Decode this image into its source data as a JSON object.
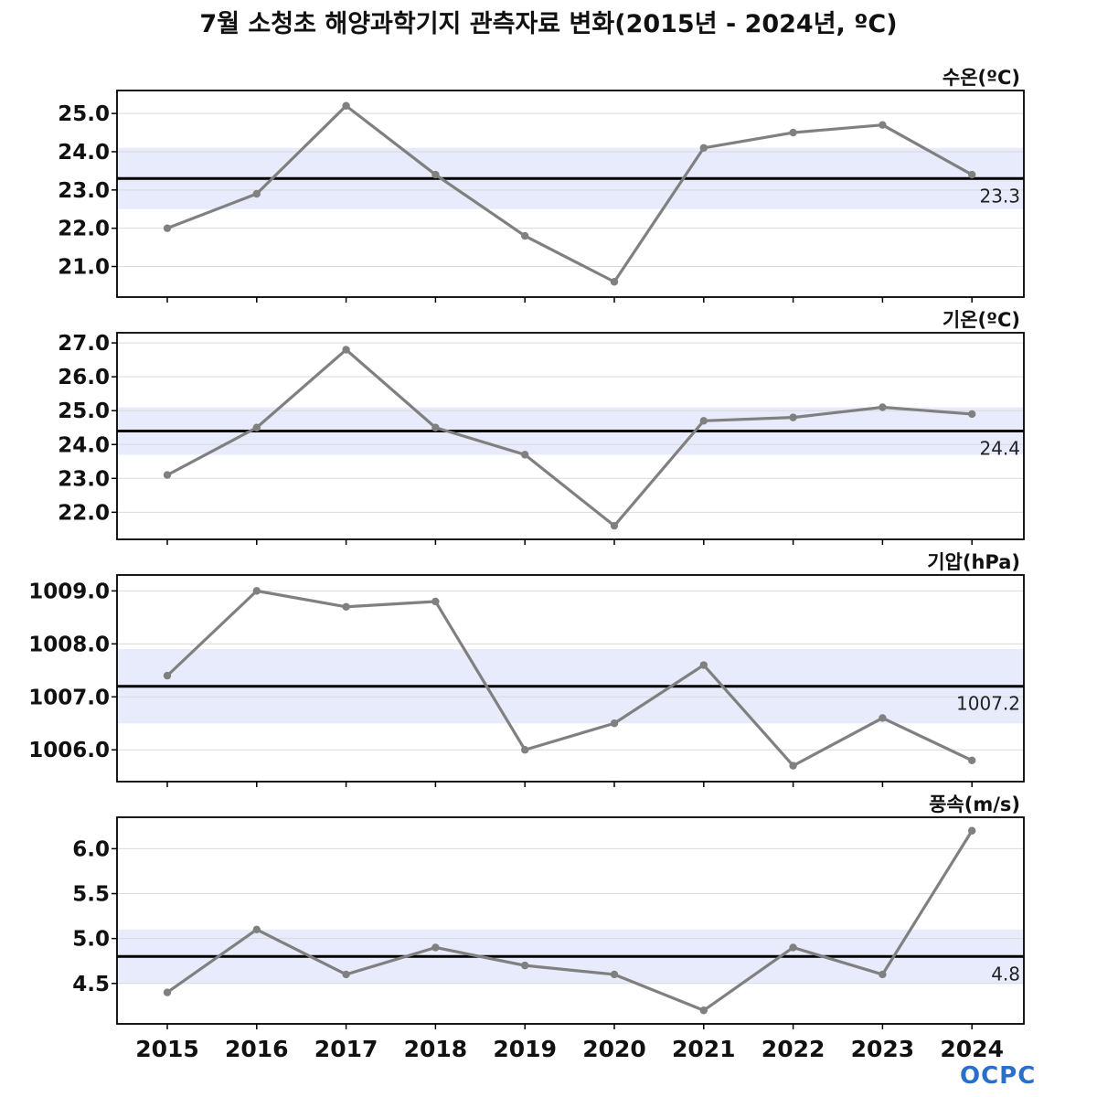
{
  "title": "7월 소청초 해양과학기지 관측자료 변화(2015년 - 2024년, ºC)",
  "logo": "OCPC",
  "colors": {
    "line": "#808080",
    "mean": "#000000",
    "band": "#e8ebfb",
    "grid": "#d9d9d9"
  },
  "chart_data": [
    {
      "type": "line",
      "title": "수온(ºC)",
      "x": [
        "2015",
        "2016",
        "2017",
        "2018",
        "2019",
        "2020",
        "2021",
        "2022",
        "2023",
        "2024"
      ],
      "values": [
        22.0,
        22.9,
        25.2,
        23.4,
        21.8,
        20.6,
        24.1,
        24.5,
        24.7,
        23.4
      ],
      "ylim": [
        20.2,
        25.6
      ],
      "yticks": [
        "21.0",
        "22.0",
        "23.0",
        "24.0",
        "25.0"
      ],
      "mean": 23.3,
      "mean_label": "23.3",
      "band": [
        22.5,
        24.1
      ]
    },
    {
      "type": "line",
      "title": "기온(ºC)",
      "x": [
        "2015",
        "2016",
        "2017",
        "2018",
        "2019",
        "2020",
        "2021",
        "2022",
        "2023",
        "2024"
      ],
      "values": [
        23.1,
        24.5,
        26.8,
        24.5,
        23.7,
        21.6,
        24.7,
        24.8,
        25.1,
        24.9
      ],
      "ylim": [
        21.2,
        27.3
      ],
      "yticks": [
        "22.0",
        "23.0",
        "24.0",
        "25.0",
        "26.0",
        "27.0"
      ],
      "mean": 24.4,
      "mean_label": "24.4",
      "band": [
        23.7,
        25.1
      ]
    },
    {
      "type": "line",
      "title": "기압(hPa)",
      "x": [
        "2015",
        "2016",
        "2017",
        "2018",
        "2019",
        "2020",
        "2021",
        "2022",
        "2023",
        "2024"
      ],
      "values": [
        1007.4,
        1009.0,
        1008.7,
        1008.8,
        1006.0,
        1006.5,
        1007.6,
        1005.7,
        1006.6,
        1005.8
      ],
      "ylim": [
        1005.4,
        1009.3
      ],
      "yticks": [
        "1006.0",
        "1007.0",
        "1008.0",
        "1009.0"
      ],
      "mean": 1007.2,
      "mean_label": "1007.2",
      "band": [
        1006.5,
        1007.9
      ]
    },
    {
      "type": "line",
      "title": "풍속(m/s)",
      "x": [
        "2015",
        "2016",
        "2017",
        "2018",
        "2019",
        "2020",
        "2021",
        "2022",
        "2023",
        "2024"
      ],
      "values": [
        4.4,
        5.1,
        4.6,
        4.9,
        4.7,
        4.6,
        4.2,
        4.9,
        4.6,
        6.2
      ],
      "ylim": [
        4.05,
        6.35
      ],
      "yticks": [
        "4.5",
        "5.0",
        "5.5",
        "6.0"
      ],
      "mean": 4.8,
      "mean_label": "4.8",
      "band": [
        4.5,
        5.1
      ]
    }
  ]
}
